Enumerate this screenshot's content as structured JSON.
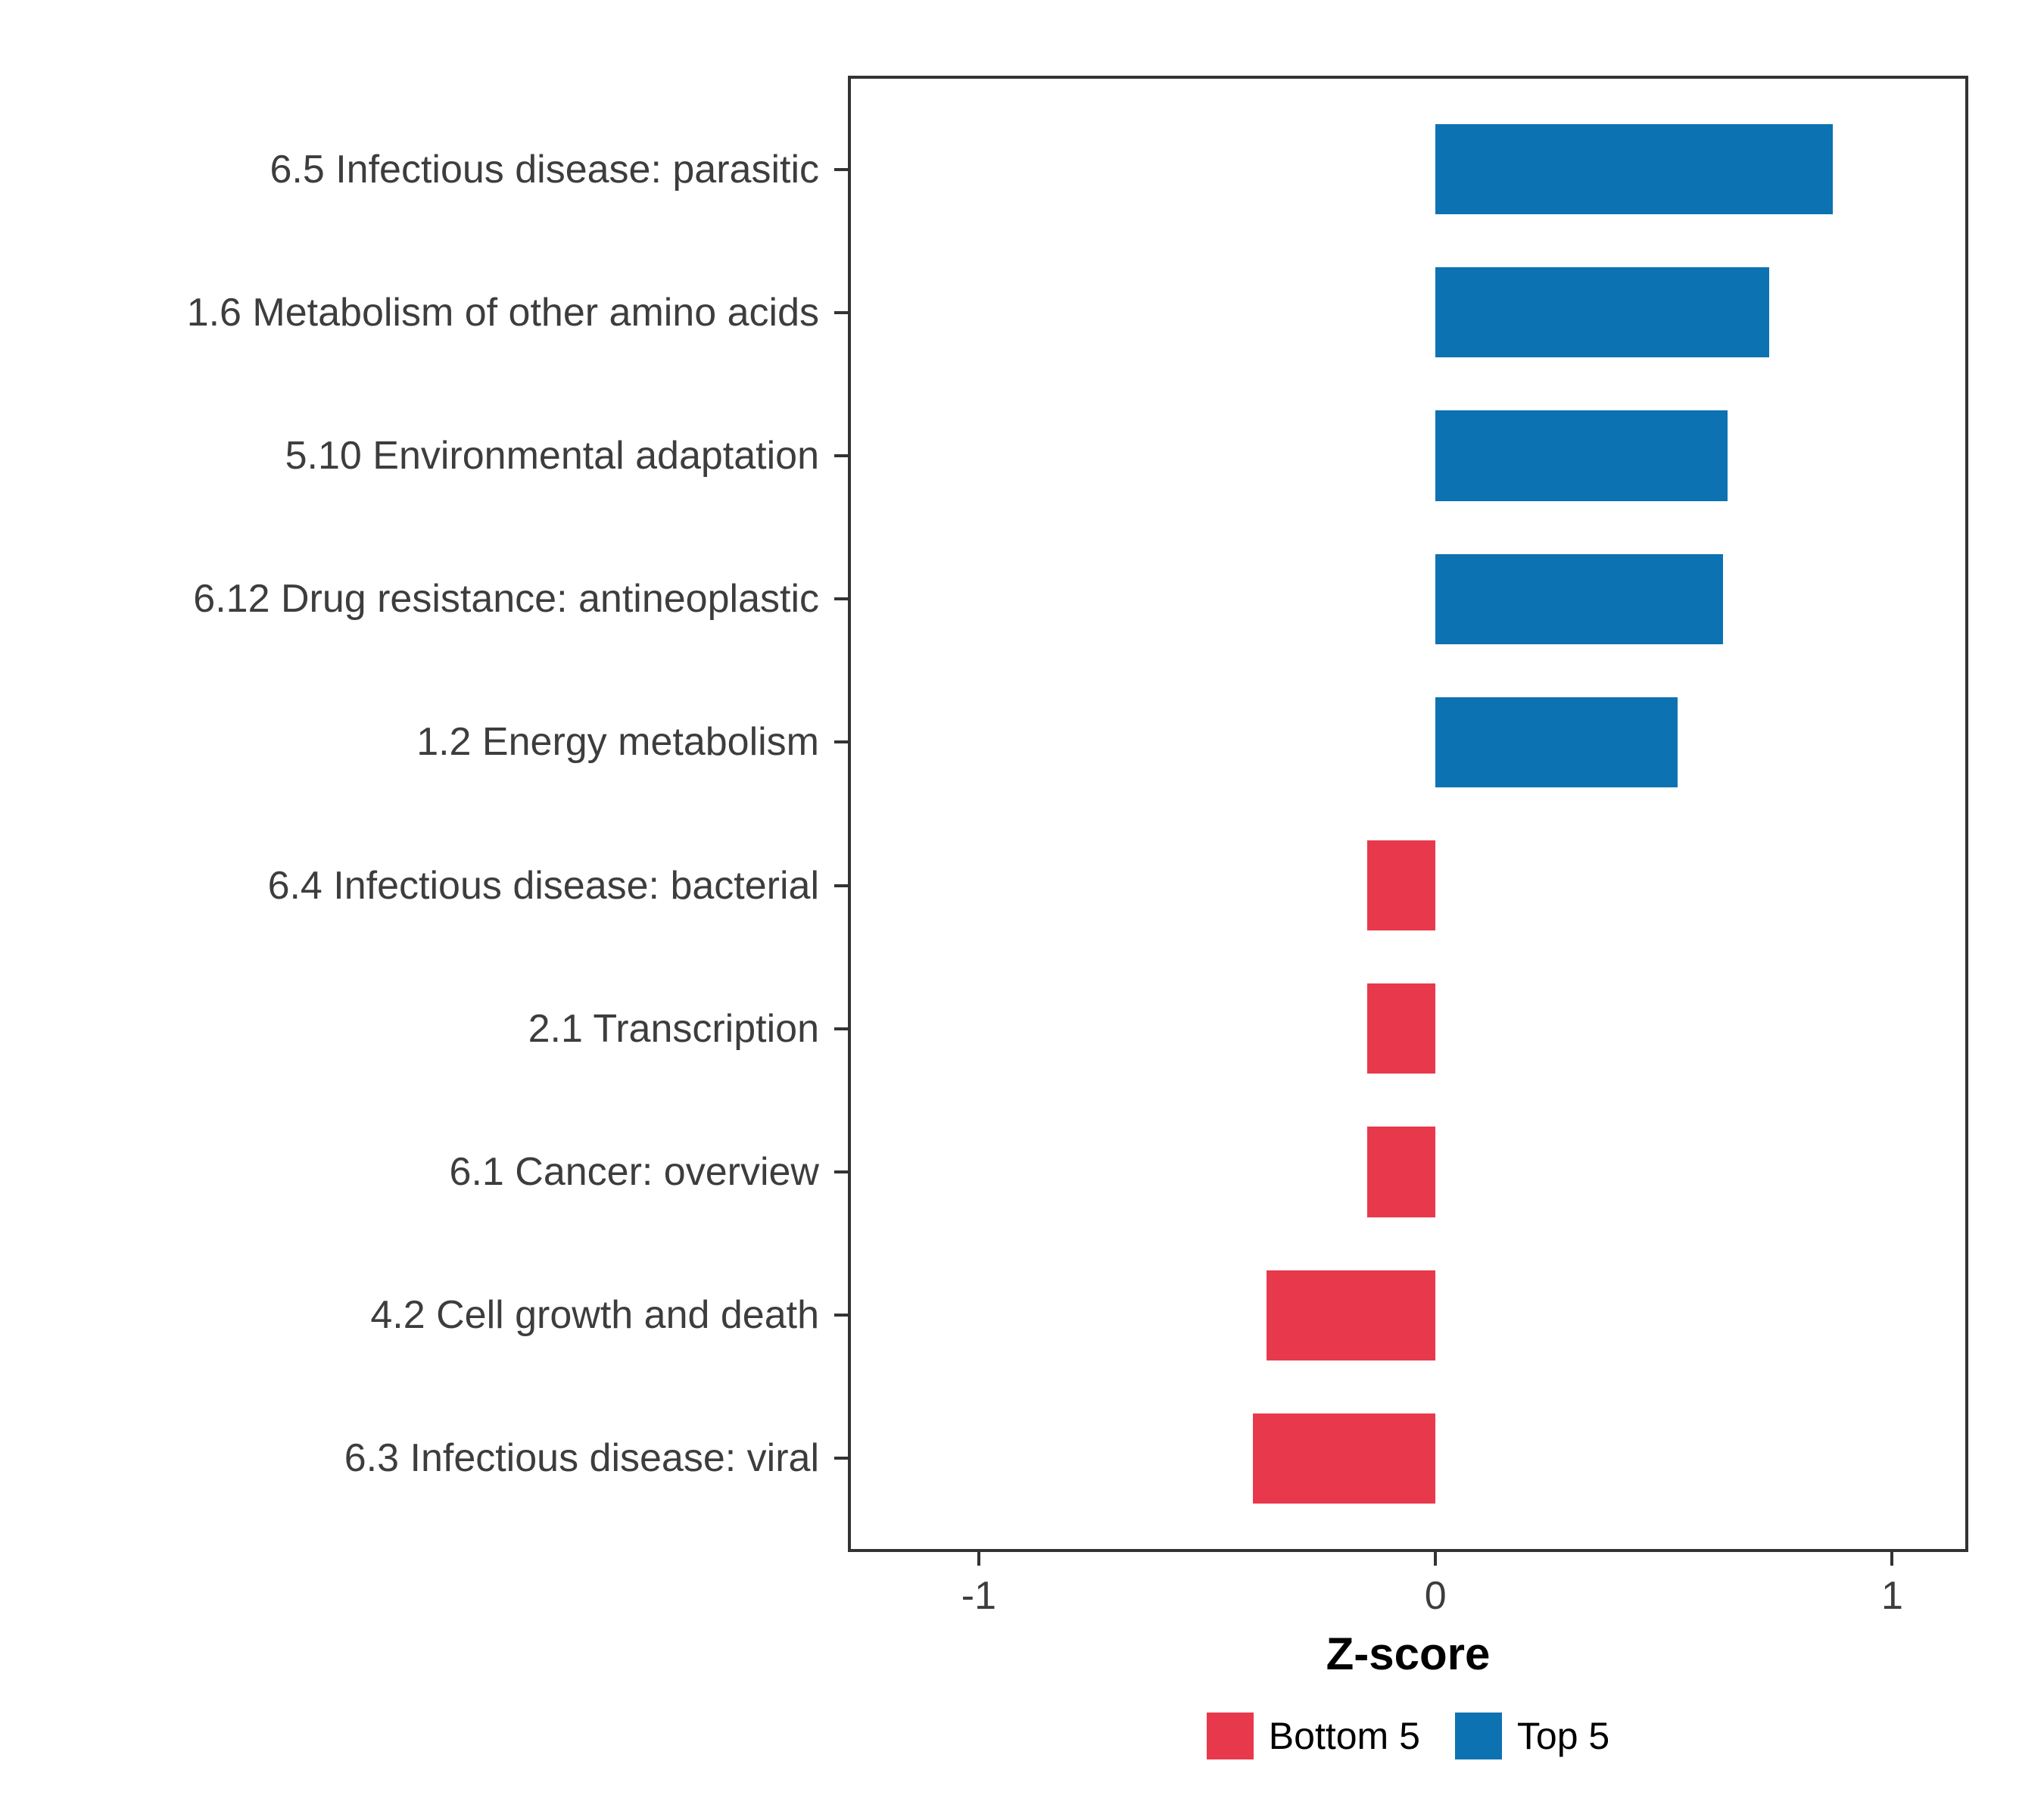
{
  "chart_data": {
    "type": "bar",
    "orientation": "horizontal",
    "title": "",
    "xlabel": "Z-score",
    "ylabel": "",
    "categories": [
      "6.5 Infectious disease: parasitic",
      "1.6 Metabolism of other amino acids",
      "5.10 Environmental adaptation",
      "6.12 Drug resistance: antineoplastic",
      "1.2 Energy metabolism",
      "6.4 Infectious disease: bacterial",
      "2.1 Transcription",
      "6.1 Cancer: overview",
      "4.2 Cell growth and death",
      "6.3 Infectious disease: viral"
    ],
    "values": [
      0.87,
      0.73,
      0.64,
      0.63,
      0.53,
      -0.15,
      -0.15,
      -0.15,
      -0.37,
      -0.4
    ],
    "groups": [
      "Top 5",
      "Top 5",
      "Top 5",
      "Top 5",
      "Top 5",
      "Bottom 5",
      "Bottom 5",
      "Bottom 5",
      "Bottom 5",
      "Bottom 5"
    ],
    "xlim": [
      -1.28,
      1.16
    ],
    "xticks": [
      -1,
      0,
      1
    ],
    "xtick_labels": [
      "-1",
      "0",
      "1"
    ],
    "grid": false,
    "legend": {
      "position": "bottom",
      "items": [
        {
          "label": "Bottom 5",
          "color": "#E8394C"
        },
        {
          "label": "Top 5",
          "color": "#0D72B2"
        }
      ]
    }
  }
}
